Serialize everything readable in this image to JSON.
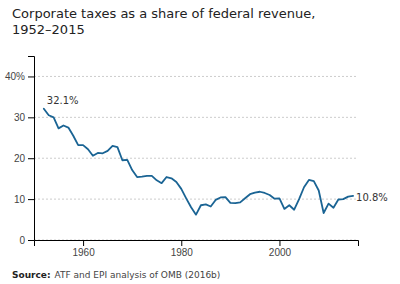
{
  "chart_data": {
    "type": "line",
    "title": [
      "Corporate taxes as a share of federal revenue,",
      "1952–2015"
    ],
    "source_label": "Source:",
    "source": "ATF and EPI analysis of OMB (2016b)",
    "color": "#1a6494",
    "grid": "y",
    "xlim": [
      1950,
      2016
    ],
    "ylim": [
      0,
      45
    ],
    "xticks": [
      1960,
      1980,
      2000
    ],
    "yticks": [
      0,
      10,
      20,
      30,
      {
        "value": 40,
        "label": "40%"
      }
    ],
    "annotations": [
      {
        "text": "32.1%",
        "x": 1952,
        "y": 32.1
      },
      {
        "text": "10.8%",
        "x": 2015,
        "y": 10.8
      }
    ],
    "x": [
      1952,
      1953,
      1954,
      1955,
      1956,
      1957,
      1958,
      1959,
      1960,
      1961,
      1962,
      1963,
      1964,
      1965,
      1966,
      1967,
      1968,
      1969,
      1970,
      1971,
      1972,
      1973,
      1974,
      1975,
      1976,
      1977,
      1978,
      1979,
      1980,
      1981,
      1982,
      1983,
      1984,
      1985,
      1986,
      1987,
      1988,
      1989,
      1990,
      1991,
      1992,
      1993,
      1994,
      1995,
      1996,
      1997,
      1998,
      1999,
      2000,
      2001,
      2002,
      2003,
      2004,
      2005,
      2006,
      2007,
      2008,
      2009,
      2010,
      2011,
      2012,
      2013,
      2014,
      2015
    ],
    "y": [
      32.1,
      30.5,
      30.0,
      27.3,
      28.0,
      27.5,
      25.5,
      23.2,
      23.2,
      22.2,
      20.6,
      21.3,
      21.2,
      21.8,
      23.0,
      22.7,
      19.5,
      19.6,
      17.1,
      15.4,
      15.5,
      15.7,
      15.7,
      14.6,
      13.9,
      15.4,
      15.1,
      14.2,
      12.5,
      10.2,
      8.0,
      6.2,
      8.5,
      8.7,
      8.2,
      9.8,
      10.4,
      10.5,
      9.1,
      9.0,
      9.2,
      10.2,
      11.2,
      11.6,
      11.8,
      11.5,
      11.0,
      10.1,
      10.2,
      7.6,
      8.5,
      7.4,
      10.0,
      12.9,
      14.7,
      14.4,
      12.1,
      6.6,
      8.9,
      7.9,
      9.9,
      10.0,
      10.6,
      10.8
    ]
  }
}
